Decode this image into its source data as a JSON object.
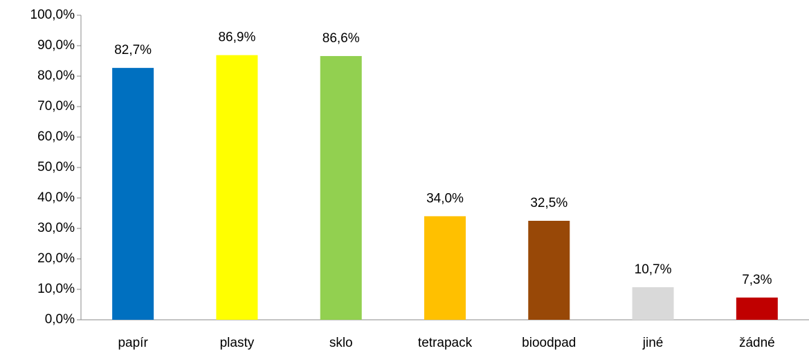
{
  "chart_data": {
    "type": "bar",
    "categories": [
      "papír",
      "plasty",
      "sklo",
      "tetrapack",
      "bioodpad",
      "jiné",
      "žádné"
    ],
    "values": [
      82.7,
      86.9,
      86.6,
      34.0,
      32.5,
      10.7,
      7.3
    ],
    "value_labels": [
      "82,7%",
      "86,9%",
      "86,6%",
      "34,0%",
      "32,5%",
      "10,7%",
      "7,3%"
    ],
    "colors": [
      "#0070c0",
      "#ffff00",
      "#92d050",
      "#ffc000",
      "#984807",
      "#d9d9d9",
      "#c00000"
    ],
    "ylim": [
      0,
      100
    ],
    "yticks": [
      {
        "value": 0,
        "label": "0,0%"
      },
      {
        "value": 10,
        "label": "10,0%"
      },
      {
        "value": 20,
        "label": "20,0%"
      },
      {
        "value": 30,
        "label": "30,0%"
      },
      {
        "value": 40,
        "label": "40,0%"
      },
      {
        "value": 50,
        "label": "50,0%"
      },
      {
        "value": 60,
        "label": "60,0%"
      },
      {
        "value": 70,
        "label": "70,0%"
      },
      {
        "value": 80,
        "label": "80,0%"
      },
      {
        "value": 90,
        "label": "90,0%"
      },
      {
        "value": 100,
        "label": "100,0%"
      }
    ],
    "grid": false
  }
}
